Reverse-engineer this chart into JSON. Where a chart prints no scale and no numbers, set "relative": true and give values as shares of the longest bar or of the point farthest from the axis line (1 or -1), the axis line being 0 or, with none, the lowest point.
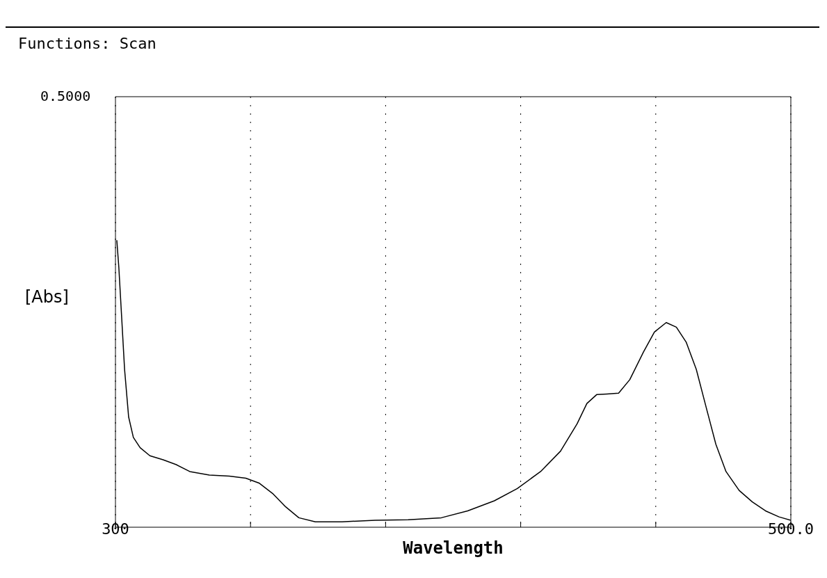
{
  "chart_data": {
    "type": "line",
    "title": "Functions: Scan",
    "xlabel": "Wavelength",
    "ylabel": "[Abs]",
    "annotations": [
      "0.5000"
    ],
    "relative": true,
    "grid": "x",
    "marker": "none",
    "line_style": "solid",
    "xlim": [
      300,
      500
    ],
    "xticks": [
      {
        "value": 300,
        "label": "300"
      },
      {
        "value": 340,
        "label": null
      },
      {
        "value": 380,
        "label": null
      },
      {
        "value": 420,
        "label": null
      },
      {
        "value": 460,
        "label": null
      },
      {
        "value": 500,
        "label": "500.0"
      }
    ],
    "x": [
      300.4,
      301.0,
      301.8,
      302.7,
      303.9,
      305.3,
      307.3,
      310.2,
      314.1,
      318.0,
      322.0,
      327.8,
      333.7,
      338.6,
      342.5,
      346.5,
      350.4,
      354.3,
      359.2,
      367.1,
      376.9,
      386.7,
      396.5,
      404.3,
      412.2,
      419.0,
      425.9,
      431.8,
      436.7,
      439.6,
      442.5,
      445.5,
      449.0,
      452.3,
      456.3,
      459.6,
      463.1,
      466.1,
      469.0,
      472.0,
      474.9,
      477.8,
      480.8,
      484.7,
      488.6,
      492.5,
      496.5,
      500.0
    ],
    "series": [
      {
        "color": "#000000",
        "values": [
          1.0,
          0.905,
          0.739,
          0.55,
          0.384,
          0.313,
          0.277,
          0.249,
          0.235,
          0.218,
          0.194,
          0.182,
          0.178,
          0.171,
          0.154,
          0.118,
          0.071,
          0.033,
          0.019,
          0.019,
          0.024,
          0.026,
          0.033,
          0.057,
          0.092,
          0.135,
          0.194,
          0.265,
          0.36,
          0.431,
          0.462,
          0.464,
          0.467,
          0.514,
          0.609,
          0.68,
          0.713,
          0.697,
          0.645,
          0.55,
          0.419,
          0.289,
          0.194,
          0.128,
          0.088,
          0.057,
          0.036,
          0.024
        ]
      }
    ]
  }
}
